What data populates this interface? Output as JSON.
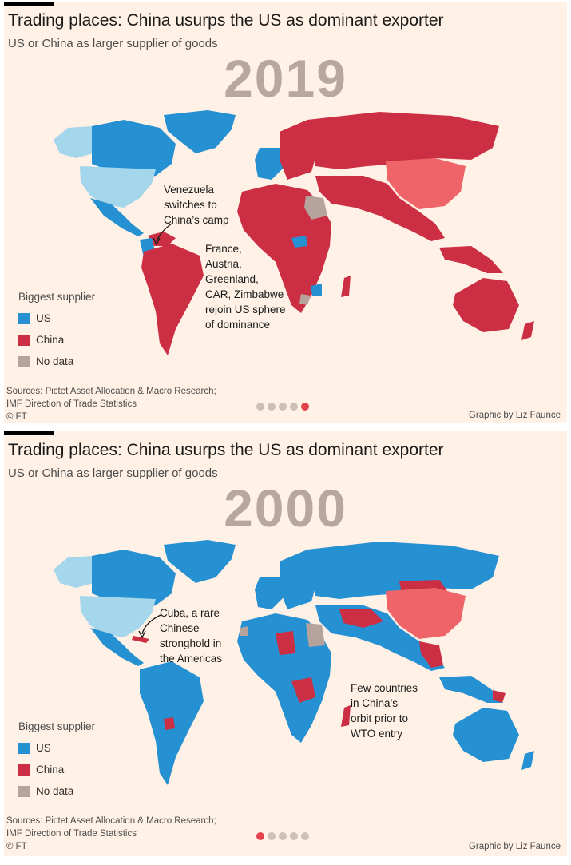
{
  "colors": {
    "us": "#2590d2",
    "china": "#cc2e44",
    "usa": "#a4d6ec",
    "china_country": "#ef6468",
    "nodata": "#b6a49c",
    "bg": "#fff1e5",
    "dot": "#ccc1b7",
    "dot_active": "#e3414b"
  },
  "panels": [
    {
      "title": "Trading places: China usurps the US as dominant exporter",
      "subtitle": "US or China as larger supplier of goods",
      "year": "2019",
      "annotations": [
        {
          "lines": [
            "Venezuela",
            "switches to",
            "China’s camp"
          ]
        },
        {
          "lines": [
            "France,",
            "Austria,",
            "Greenland,",
            "CAR, Zimbabwe",
            "rejoin US sphere",
            "of dominance"
          ]
        }
      ],
      "legend": {
        "title": "Biggest supplier",
        "items": [
          "US",
          "China",
          "No data"
        ]
      },
      "sources": [
        "Sources: Pictet Asset Allocation & Macro Research;",
        "IMF Direction of Trade Statistics",
        "© FT"
      ],
      "credit": "Graphic by Liz Faunce",
      "active_slide": 4,
      "slides": 5
    },
    {
      "title": "Trading places: China usurps the US as dominant exporter",
      "subtitle": "US or China as larger supplier of goods",
      "year": "2000",
      "annotations": [
        {
          "lines": [
            "Cuba, a rare",
            "Chinese",
            "stronghold in",
            "the Americas"
          ]
        },
        {
          "lines": [
            "Few countries",
            "in China’s",
            "orbit prior to",
            "WTO entry"
          ]
        }
      ],
      "legend": {
        "title": "Biggest supplier",
        "items": [
          "US",
          "China",
          "No data"
        ]
      },
      "sources": [
        "Sources: Pictet Asset Allocation & Macro Research;",
        "IMF Direction of Trade Statistics",
        "© FT"
      ],
      "credit": "Graphic by Liz Faunce",
      "active_slide": 0,
      "slides": 5
    }
  ]
}
